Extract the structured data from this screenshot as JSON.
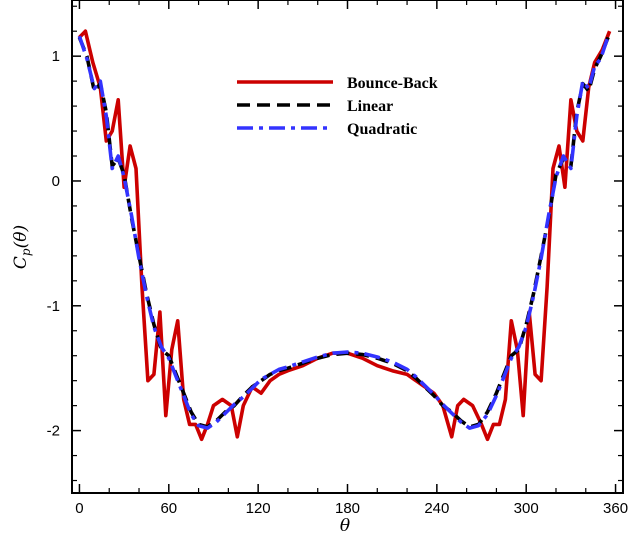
{
  "chart_data": {
    "type": "line",
    "xlabel": "θ",
    "ylabel_main": "C",
    "ylabel_sub": "p",
    "ylabel_arg": "(θ)",
    "xlim": [
      -5,
      365
    ],
    "ylim": [
      -2.5,
      1.45
    ],
    "xticks": [
      0,
      60,
      120,
      180,
      240,
      300,
      360
    ],
    "yticks": [
      -2,
      -1,
      0,
      1
    ],
    "ytick_labels": [
      "-2",
      "-1",
      "0",
      "1"
    ],
    "grid": false,
    "legend_position": "top-center",
    "series": [
      {
        "name": "Bounce-Back",
        "color": "#cc0000",
        "style": "solid",
        "x": [
          0,
          4,
          9,
          14,
          18,
          22,
          26,
          30,
          34,
          38,
          42,
          46,
          50,
          54,
          58,
          62,
          66,
          70,
          74,
          78,
          82,
          86,
          90,
          96,
          102,
          106,
          110,
          116,
          122,
          128,
          134,
          140,
          150,
          160,
          170,
          180,
          190,
          200,
          210,
          220,
          226,
          232,
          238,
          244,
          250,
          254,
          258,
          264,
          270,
          274,
          278,
          282,
          286,
          290,
          294,
          298,
          302,
          306,
          310,
          314,
          318,
          322,
          326,
          330,
          334,
          338,
          342,
          346,
          351,
          356
        ],
        "y": [
          1.15,
          1.2,
          0.95,
          0.75,
          0.32,
          0.4,
          0.65,
          -0.05,
          0.28,
          0.1,
          -0.85,
          -1.6,
          -1.55,
          -1.05,
          -1.88,
          -1.35,
          -1.12,
          -1.75,
          -1.95,
          -1.95,
          -2.07,
          -1.95,
          -1.8,
          -1.75,
          -1.8,
          -2.05,
          -1.8,
          -1.65,
          -1.7,
          -1.6,
          -1.55,
          -1.52,
          -1.48,
          -1.42,
          -1.38,
          -1.38,
          -1.42,
          -1.48,
          -1.52,
          -1.55,
          -1.6,
          -1.65,
          -1.7,
          -1.8,
          -2.05,
          -1.8,
          -1.75,
          -1.8,
          -1.95,
          -2.07,
          -1.95,
          -1.95,
          -1.75,
          -1.12,
          -1.35,
          -1.88,
          -1.05,
          -1.55,
          -1.6,
          -0.85,
          0.1,
          0.28,
          -0.05,
          0.65,
          0.4,
          0.32,
          0.75,
          0.95,
          1.05,
          1.2
        ]
      },
      {
        "name": "Linear",
        "color": "#000000",
        "style": "dashed",
        "x": [
          0,
          5,
          10,
          14,
          18,
          22,
          26,
          30,
          35,
          40,
          45,
          50,
          55,
          60,
          65,
          70,
          75,
          80,
          86,
          92,
          98,
          104,
          110,
          116,
          122,
          128,
          134,
          140,
          150,
          160,
          170,
          180,
          190,
          200,
          210,
          220,
          226,
          232,
          238,
          244,
          250,
          256,
          262,
          268,
          274,
          280,
          285,
          290,
          295,
          300,
          305,
          310,
          315,
          320,
          325,
          330,
          334,
          338,
          342,
          346,
          350,
          355
        ],
        "y": [
          1.15,
          1.0,
          0.72,
          0.78,
          0.55,
          0.12,
          0.18,
          0.05,
          -0.3,
          -0.6,
          -0.9,
          -1.15,
          -1.35,
          -1.4,
          -1.55,
          -1.7,
          -1.85,
          -1.95,
          -1.97,
          -1.92,
          -1.85,
          -1.8,
          -1.72,
          -1.65,
          -1.6,
          -1.55,
          -1.52,
          -1.5,
          -1.46,
          -1.42,
          -1.39,
          -1.38,
          -1.39,
          -1.42,
          -1.46,
          -1.52,
          -1.58,
          -1.65,
          -1.72,
          -1.8,
          -1.85,
          -1.92,
          -1.97,
          -1.95,
          -1.85,
          -1.7,
          -1.55,
          -1.4,
          -1.35,
          -1.15,
          -0.9,
          -0.6,
          -0.3,
          0.05,
          0.18,
          0.12,
          0.55,
          0.78,
          0.72,
          0.9,
          1.0,
          1.15
        ]
      },
      {
        "name": "Quadratic",
        "color": "#3333ff",
        "style": "dashdot",
        "x": [
          0,
          5,
          10,
          14,
          18,
          22,
          26,
          30,
          35,
          40,
          45,
          50,
          55,
          60,
          65,
          70,
          75,
          80,
          86,
          92,
          98,
          104,
          110,
          116,
          122,
          128,
          134,
          140,
          150,
          160,
          170,
          180,
          190,
          200,
          210,
          220,
          226,
          232,
          238,
          244,
          250,
          256,
          262,
          268,
          274,
          280,
          285,
          290,
          295,
          300,
          305,
          310,
          315,
          320,
          325,
          330,
          334,
          338,
          342,
          346,
          350,
          355
        ],
        "y": [
          1.16,
          0.98,
          0.74,
          0.8,
          0.52,
          0.1,
          0.2,
          0.03,
          -0.28,
          -0.62,
          -0.92,
          -1.17,
          -1.33,
          -1.42,
          -1.57,
          -1.72,
          -1.87,
          -1.96,
          -1.98,
          -1.93,
          -1.86,
          -1.79,
          -1.73,
          -1.66,
          -1.59,
          -1.55,
          -1.51,
          -1.49,
          -1.45,
          -1.41,
          -1.38,
          -1.37,
          -1.38,
          -1.41,
          -1.45,
          -1.51,
          -1.57,
          -1.64,
          -1.71,
          -1.79,
          -1.86,
          -1.93,
          -1.98,
          -1.96,
          -1.87,
          -1.72,
          -1.57,
          -1.42,
          -1.33,
          -1.17,
          -0.92,
          -0.62,
          -0.28,
          0.03,
          0.2,
          0.1,
          0.52,
          0.8,
          0.74,
          0.92,
          0.98,
          1.16
        ]
      }
    ]
  }
}
